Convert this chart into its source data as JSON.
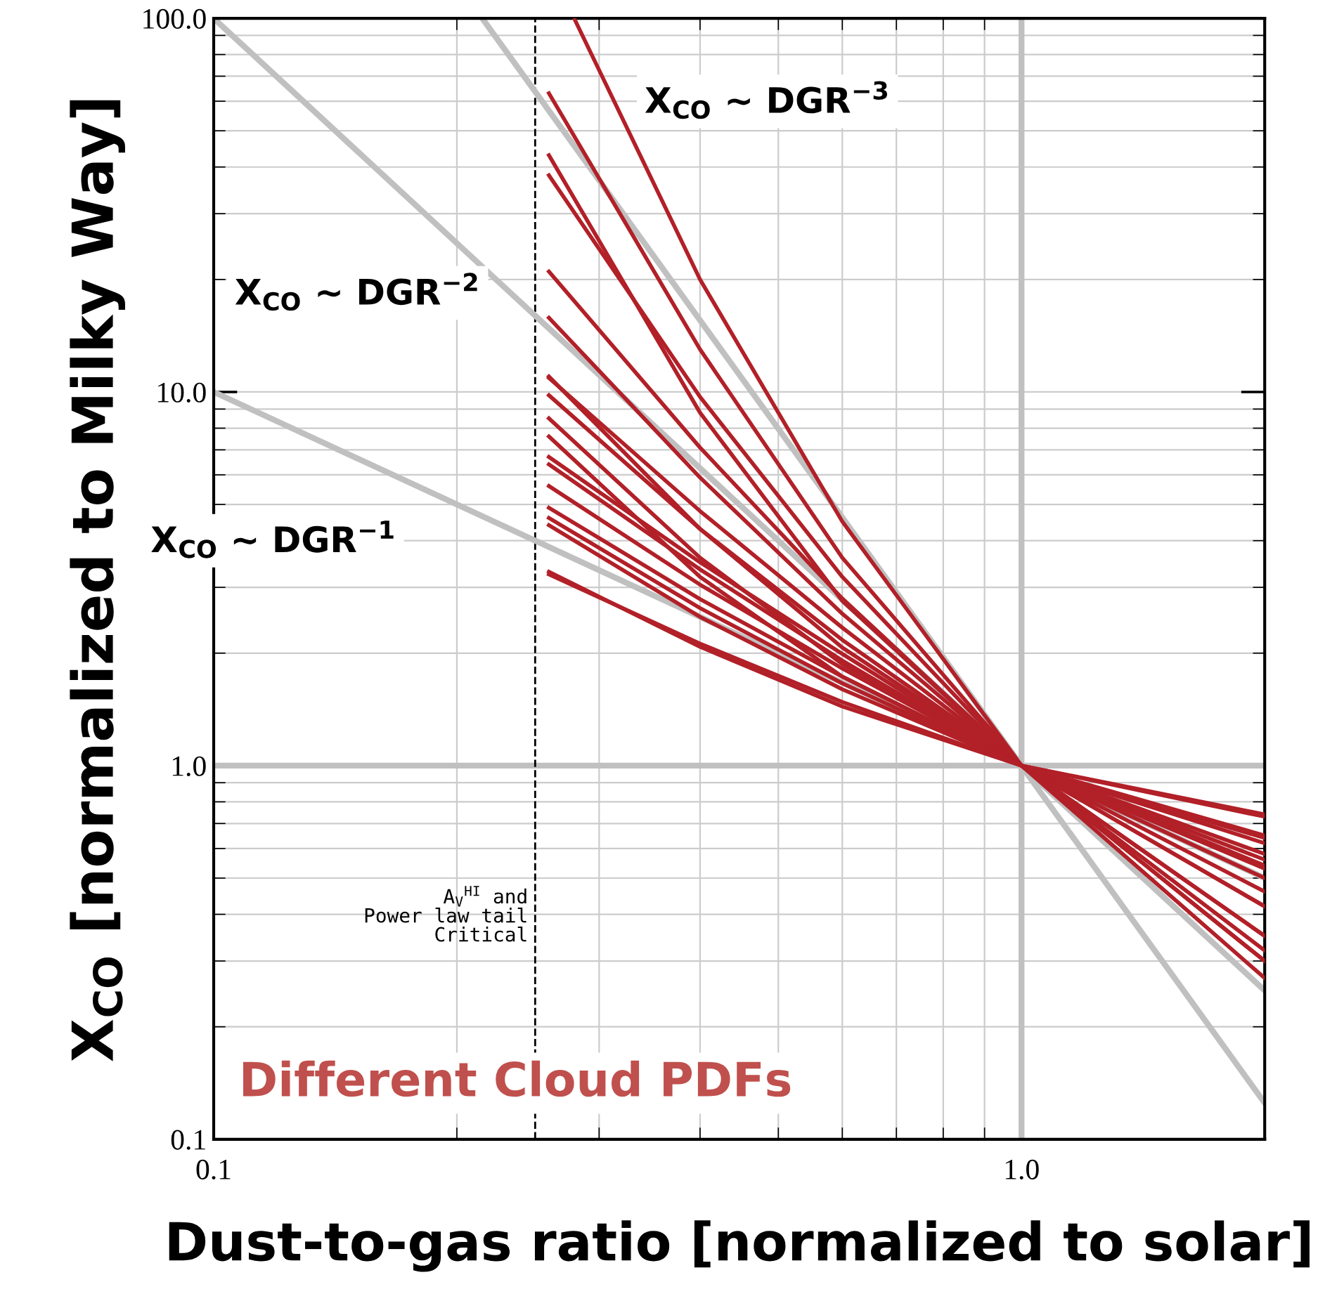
{
  "chart_data": {
    "type": "line",
    "xlabel": "Dust-to-gas ratio [normalized to solar]",
    "ylabel": "X$_{CO}$ [normalized to Milky Way]",
    "log": "xy",
    "xlim": [
      0.1,
      2
    ],
    "ylim": [
      0.1,
      100
    ],
    "xticks": [
      0.1,
      {
        "value": 1,
        "label": "1.0"
      }
    ],
    "yticks": [
      0.1,
      {
        "value": 1,
        "label": "1.0"
      },
      {
        "value": 10,
        "label": "10.0"
      },
      {
        "value": 100,
        "label": "100.0"
      }
    ],
    "grid": true,
    "legend": false,
    "marker": "none",
    "line_style": "solid",
    "x": [
      0.26,
      0.4,
      0.6,
      1,
      2
    ],
    "series": [
      {
        "color": "#c0c0c0",
        "x": [
          0.1,
          2
        ],
        "values": [
          10,
          0.5
        ]
      },
      {
        "color": "#c0c0c0",
        "x": [
          0.1,
          2
        ],
        "values": [
          100,
          0.25
        ]
      },
      {
        "color": "#c0c0c0",
        "x": [
          0.215,
          2
        ],
        "values": [
          100,
          0.125
        ]
      },
      {
        "color": "#b22028",
        "x": [
          0.28,
          0.4,
          0.6,
          1,
          2
        ],
        "values": [
          99,
          20,
          4.5,
          1,
          0.27
        ]
      },
      {
        "color": "#b22028",
        "values": [
          63,
          13,
          3.6,
          1,
          0.3
        ]
      },
      {
        "color": "#b22028",
        "values": [
          43,
          8.8,
          2.76,
          1,
          0.56
        ]
      },
      {
        "color": "#b22028",
        "values": [
          38,
          9.7,
          3.2,
          1,
          0.32
        ]
      },
      {
        "color": "#b22028",
        "values": [
          21,
          7.1,
          2.8,
          1,
          0.3
        ]
      },
      {
        "color": "#b22028",
        "values": [
          15.8,
          5.9,
          2.55,
          1,
          0.35
        ]
      },
      {
        "color": "#b22028",
        "values": [
          11,
          4.3,
          2.07,
          1,
          0.54
        ]
      },
      {
        "color": "#b22028",
        "values": [
          10.9,
          4.8,
          2.34,
          1,
          0.35
        ]
      },
      {
        "color": "#b22028",
        "values": [
          9.8,
          4.3,
          2.17,
          1,
          0.42
        ]
      },
      {
        "color": "#b22028",
        "values": [
          8.5,
          3.6,
          1.87,
          1,
          0.62
        ]
      },
      {
        "color": "#b22028",
        "values": [
          7.6,
          3.2,
          1.73,
          1,
          0.74
        ]
      },
      {
        "color": "#b22028",
        "values": [
          6.7,
          3.5,
          1.99,
          1,
          0.42
        ]
      },
      {
        "color": "#b22028",
        "values": [
          6.4,
          3.35,
          1.91,
          1,
          0.46
        ]
      },
      {
        "color": "#b22028",
        "values": [
          5.6,
          3.05,
          1.82,
          1,
          0.5
        ]
      },
      {
        "color": "#b22028",
        "values": [
          4.9,
          2.79,
          1.73,
          1,
          0.53
        ]
      },
      {
        "color": "#b22028",
        "values": [
          4.6,
          2.64,
          1.66,
          1,
          0.58
        ]
      },
      {
        "color": "#b22028",
        "values": [
          4.4,
          2.5,
          1.6,
          1,
          0.64
        ]
      },
      {
        "color": "#b22028",
        "values": [
          3.3,
          2.08,
          1.44,
          1,
          0.73
        ]
      },
      {
        "color": "#b22028",
        "values": [
          3.25,
          2.12,
          1.48,
          1,
          0.65
        ]
      }
    ],
    "ref_lines": [
      {
        "axis": "y",
        "value": 1,
        "color": "#c0c0c0",
        "line_style": "solid"
      },
      {
        "axis": "x",
        "value": 1,
        "color": "#c0c0c0",
        "line_style": "solid"
      },
      {
        "axis": "x",
        "value": 0.25,
        "color": "#000000",
        "line_style": "dashed",
        "label": "A$_{V}$$^{HI}$ and\nPower law tail\nCritical"
      }
    ],
    "annotations": [
      "X$_{CO}$ ~ DGR$^{−3}$",
      "X$_{CO}$ ~ DGR$^{−2}$",
      "X$_{CO}$ ~ DGR$^{−1}$",
      "Different Cloud PDFs"
    ]
  }
}
